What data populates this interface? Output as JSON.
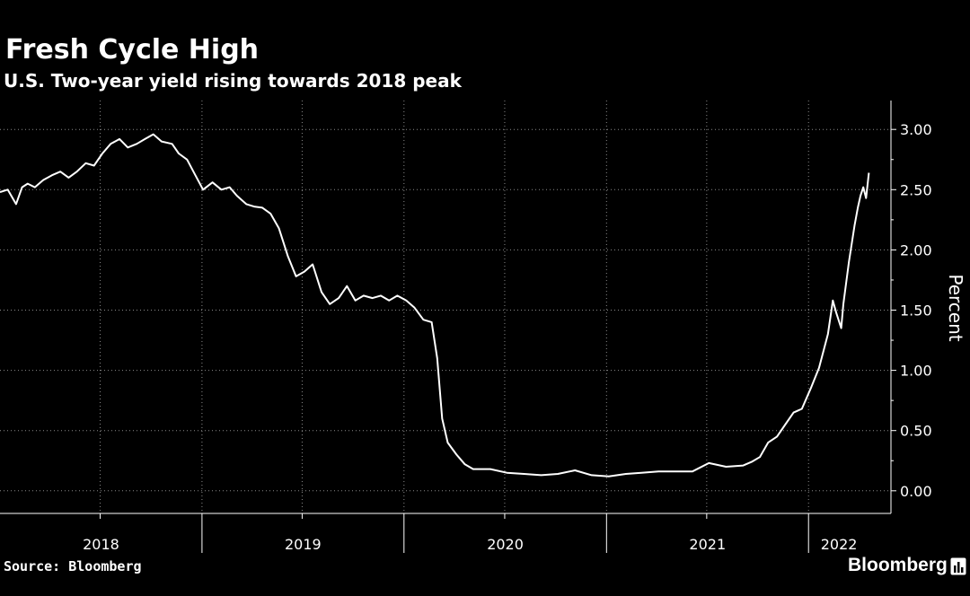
{
  "header": {
    "title": "Fresh Cycle High",
    "subtitle": "U.S. Two-year yield rising towards 2018 peak"
  },
  "footer": {
    "source": "Source: Bloomberg",
    "brand": "Bloomberg"
  },
  "colors": {
    "background": "#000000",
    "line": "#ffffff",
    "grid": "#8a8a8a"
  },
  "chart_data": {
    "type": "line",
    "title": "Fresh Cycle High",
    "subtitle": "U.S. Two-year yield rising towards 2018 peak",
    "ylabel": "Percent",
    "xlabel": "",
    "ylim": [
      -0.1,
      3.3
    ],
    "xlim": [
      "2018-01-01",
      "2022-04-21"
    ],
    "y_axis_position": "right",
    "y_ticks": [
      0,
      0.5,
      1,
      1.5,
      2,
      2.5,
      3
    ],
    "y_tick_labels": [
      "0.00",
      "0.50",
      "1.00",
      "1.50",
      "2.00",
      "2.50",
      "3.00"
    ],
    "x_tick_labels": [
      "2018",
      "2019",
      "2020",
      "2021",
      "2022"
    ],
    "grid": true,
    "legend": "none",
    "series": [
      {
        "x": [
          "2018-01-01",
          "2018-01-15",
          "2018-01-30",
          "2018-02-10",
          "2018-02-20",
          "2018-03-05",
          "2018-03-20",
          "2018-04-05",
          "2018-04-20",
          "2018-05-05",
          "2018-05-20",
          "2018-06-05",
          "2018-06-20",
          "2018-07-05",
          "2018-07-20",
          "2018-08-05",
          "2018-08-20",
          "2018-09-05",
          "2018-09-20",
          "2018-10-05",
          "2018-10-20",
          "2018-11-08",
          "2018-11-20",
          "2018-12-05",
          "2018-12-20",
          "2019-01-03",
          "2019-01-20",
          "2019-02-05",
          "2019-02-20",
          "2019-03-05",
          "2019-03-22",
          "2019-04-05",
          "2019-04-20",
          "2019-05-05",
          "2019-05-20",
          "2019-06-05",
          "2019-06-20",
          "2019-07-05",
          "2019-07-20",
          "2019-08-05",
          "2019-08-20",
          "2019-09-05",
          "2019-09-20",
          "2019-10-05",
          "2019-10-20",
          "2019-11-05",
          "2019-11-20",
          "2019-12-05",
          "2019-12-20",
          "2020-01-05",
          "2020-01-20",
          "2020-02-05",
          "2020-02-20",
          "2020-03-01",
          "2020-03-10",
          "2020-03-20",
          "2020-04-05",
          "2020-04-20",
          "2020-05-05",
          "2020-06-05",
          "2020-07-05",
          "2020-08-05",
          "2020-09-05",
          "2020-10-05",
          "2020-11-05",
          "2020-12-05",
          "2021-01-05",
          "2021-02-05",
          "2021-03-05",
          "2021-04-05",
          "2021-05-05",
          "2021-06-05",
          "2021-07-05",
          "2021-08-05",
          "2021-09-05",
          "2021-09-20",
          "2021-10-05",
          "2021-10-20",
          "2021-11-05",
          "2021-11-20",
          "2021-12-05",
          "2021-12-20",
          "2022-01-05",
          "2022-01-20",
          "2022-02-05",
          "2022-02-14",
          "2022-02-20",
          "2022-03-01",
          "2022-03-05",
          "2022-03-15",
          "2022-03-25",
          "2022-03-31",
          "2022-04-05",
          "2022-04-10",
          "2022-04-15",
          "2022-04-20"
        ],
        "y": [
          2.48,
          2.5,
          2.38,
          2.52,
          2.55,
          2.52,
          2.58,
          2.62,
          2.65,
          2.6,
          2.65,
          2.72,
          2.7,
          2.8,
          2.88,
          2.92,
          2.85,
          2.88,
          2.92,
          2.96,
          2.9,
          2.88,
          2.8,
          2.75,
          2.62,
          2.5,
          2.56,
          2.5,
          2.52,
          2.45,
          2.38,
          2.36,
          2.35,
          2.3,
          2.18,
          1.95,
          1.78,
          1.82,
          1.88,
          1.65,
          1.55,
          1.6,
          1.7,
          1.58,
          1.62,
          1.6,
          1.62,
          1.58,
          1.62,
          1.58,
          1.52,
          1.42,
          1.4,
          1.1,
          0.6,
          0.4,
          0.3,
          0.22,
          0.18,
          0.18,
          0.15,
          0.14,
          0.13,
          0.14,
          0.17,
          0.13,
          0.12,
          0.14,
          0.15,
          0.16,
          0.16,
          0.16,
          0.23,
          0.2,
          0.21,
          0.24,
          0.28,
          0.4,
          0.45,
          0.55,
          0.65,
          0.68,
          0.85,
          1.02,
          1.3,
          1.58,
          1.48,
          1.35,
          1.55,
          1.9,
          2.2,
          2.35,
          2.45,
          2.52,
          2.43,
          2.64
        ],
        "color": "#ffffff"
      }
    ]
  }
}
